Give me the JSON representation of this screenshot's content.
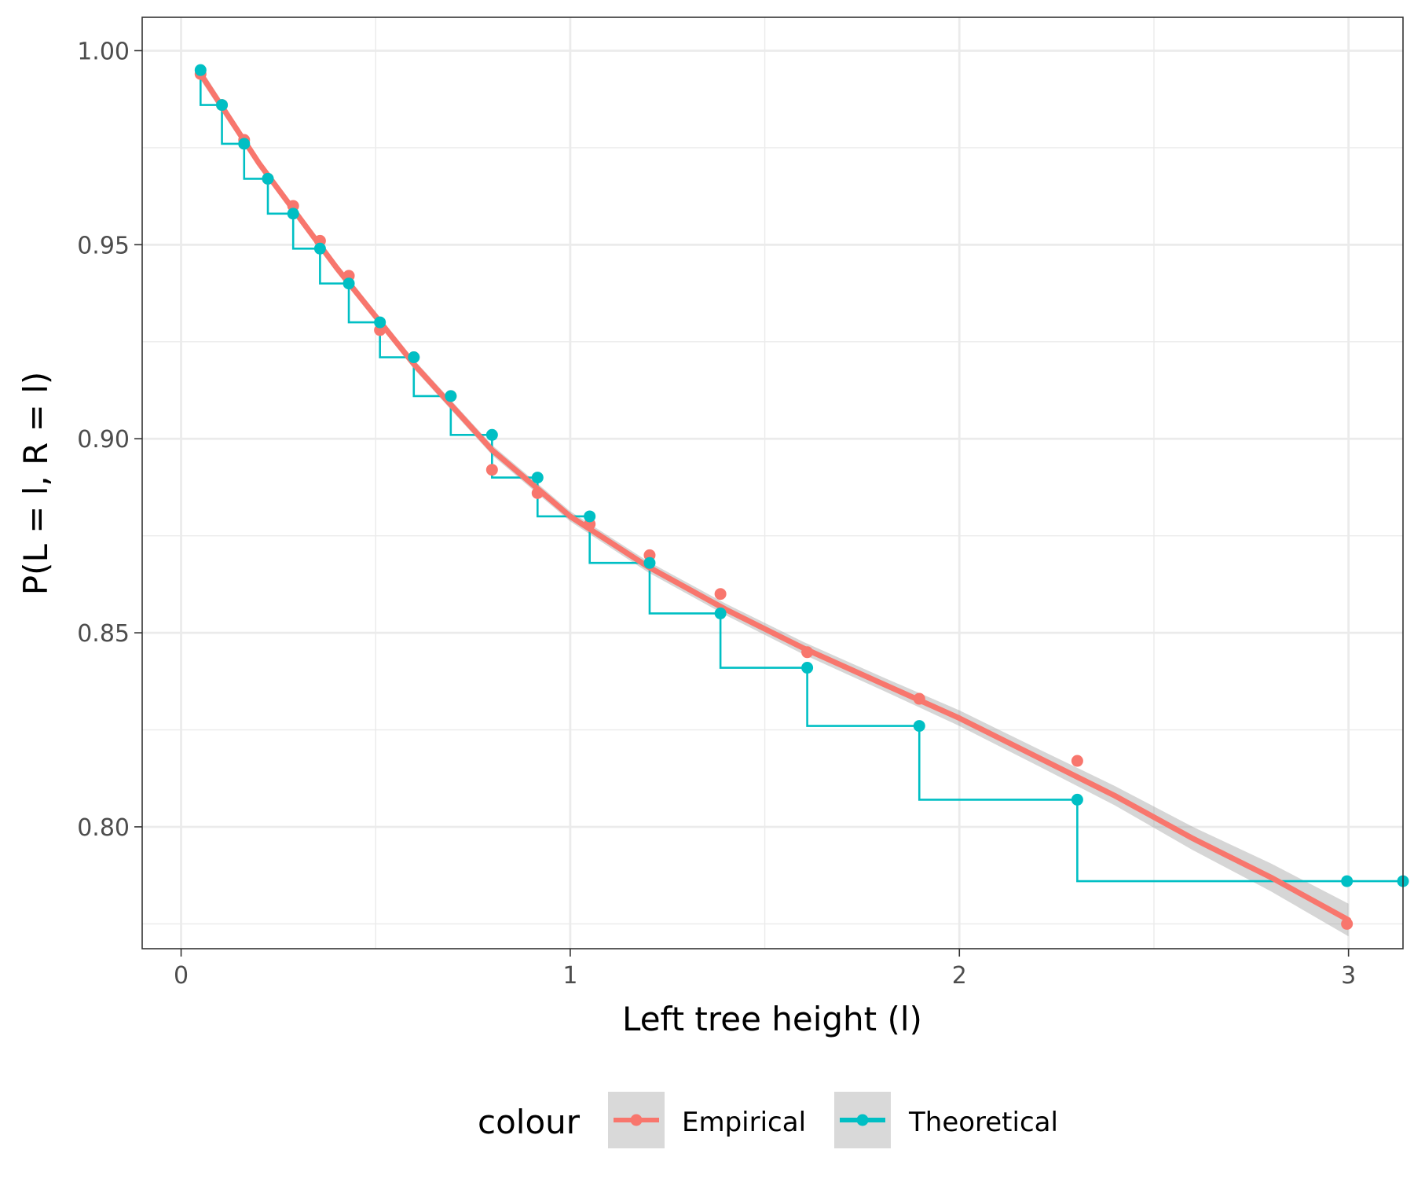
{
  "chart_data": {
    "type": "line",
    "title": "",
    "xlabel": "Left tree height (l)",
    "ylabel": "P(L = l, R = l)",
    "xlim": [
      -0.1,
      3.14
    ],
    "ylim": [
      0.7686,
      1.0086
    ],
    "x_ticks": [
      0,
      1,
      2,
      3
    ],
    "x_tick_labels": [
      "0",
      "1",
      "2",
      "3"
    ],
    "y_ticks": [
      0.8,
      0.85,
      0.9,
      0.95,
      1.0
    ],
    "y_tick_labels": [
      "0.80",
      "0.85",
      "0.90",
      "0.95",
      "1.00"
    ],
    "grid": true,
    "legend": {
      "title": "colour",
      "position": "bottom"
    },
    "series": [
      {
        "name": "Empirical",
        "color": "#f8766d",
        "kind": "points+smooth",
        "points": [
          {
            "x": 0.05,
            "y": 0.994
          },
          {
            "x": 0.105,
            "y": 0.986
          },
          {
            "x": 0.162,
            "y": 0.977
          },
          {
            "x": 0.223,
            "y": 0.967
          },
          {
            "x": 0.288,
            "y": 0.96
          },
          {
            "x": 0.357,
            "y": 0.951
          },
          {
            "x": 0.431,
            "y": 0.942
          },
          {
            "x": 0.511,
            "y": 0.928
          },
          {
            "x": 0.598,
            "y": 0.921
          },
          {
            "x": 0.693,
            "y": 0.911
          },
          {
            "x": 0.799,
            "y": 0.892
          },
          {
            "x": 0.916,
            "y": 0.886
          },
          {
            "x": 1.05,
            "y": 0.878
          },
          {
            "x": 1.204,
            "y": 0.87
          },
          {
            "x": 1.386,
            "y": 0.86
          },
          {
            "x": 1.609,
            "y": 0.845
          },
          {
            "x": 1.897,
            "y": 0.833
          },
          {
            "x": 2.303,
            "y": 0.817
          },
          {
            "x": 2.996,
            "y": 0.775
          }
        ],
        "smooth": [
          {
            "x": 0.05,
            "y": 0.994
          },
          {
            "x": 0.2,
            "y": 0.971
          },
          {
            "x": 0.4,
            "y": 0.944
          },
          {
            "x": 0.6,
            "y": 0.919
          },
          {
            "x": 0.8,
            "y": 0.897
          },
          {
            "x": 1.0,
            "y": 0.88
          },
          {
            "x": 1.2,
            "y": 0.867
          },
          {
            "x": 1.4,
            "y": 0.856
          },
          {
            "x": 1.6,
            "y": 0.846
          },
          {
            "x": 1.8,
            "y": 0.837
          },
          {
            "x": 2.0,
            "y": 0.828
          },
          {
            "x": 2.2,
            "y": 0.818
          },
          {
            "x": 2.4,
            "y": 0.808
          },
          {
            "x": 2.6,
            "y": 0.797
          },
          {
            "x": 2.8,
            "y": 0.787
          },
          {
            "x": 3.0,
            "y": 0.776
          }
        ],
        "band_halfwidth": [
          0.0015,
          0.0012,
          0.0012,
          0.0012,
          0.0013,
          0.0013,
          0.0014,
          0.0015,
          0.0016,
          0.0017,
          0.002,
          0.0022,
          0.0025,
          0.003,
          0.0036,
          0.0042
        ]
      },
      {
        "name": "Theoretical",
        "color": "#00bfc4",
        "kind": "points+step",
        "points": [
          {
            "x": 0.05,
            "y": 0.995
          },
          {
            "x": 0.105,
            "y": 0.986
          },
          {
            "x": 0.162,
            "y": 0.976
          },
          {
            "x": 0.223,
            "y": 0.967
          },
          {
            "x": 0.288,
            "y": 0.958
          },
          {
            "x": 0.357,
            "y": 0.949
          },
          {
            "x": 0.431,
            "y": 0.94
          },
          {
            "x": 0.511,
            "y": 0.93
          },
          {
            "x": 0.598,
            "y": 0.921
          },
          {
            "x": 0.693,
            "y": 0.911
          },
          {
            "x": 0.799,
            "y": 0.901
          },
          {
            "x": 0.916,
            "y": 0.89
          },
          {
            "x": 1.05,
            "y": 0.88
          },
          {
            "x": 1.204,
            "y": 0.868
          },
          {
            "x": 1.386,
            "y": 0.855
          },
          {
            "x": 1.609,
            "y": 0.841
          },
          {
            "x": 1.897,
            "y": 0.826
          },
          {
            "x": 2.303,
            "y": 0.807
          },
          {
            "x": 2.996,
            "y": 0.786
          },
          {
            "x": 3.14,
            "y": 0.786
          }
        ]
      }
    ]
  }
}
